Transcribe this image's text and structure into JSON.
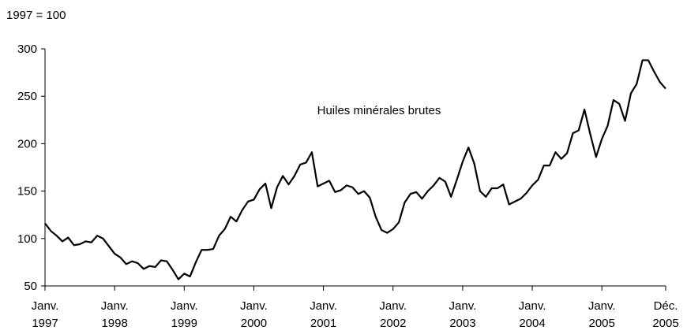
{
  "chart_data": {
    "type": "line",
    "y_label": "1997 = 100",
    "categories": [
      "Janv. 1997",
      null,
      null,
      null,
      null,
      null,
      null,
      null,
      null,
      null,
      null,
      null,
      "Janv. 1998",
      null,
      null,
      null,
      null,
      null,
      null,
      null,
      null,
      null,
      null,
      null,
      "Janv. 1999",
      null,
      null,
      null,
      null,
      null,
      null,
      null,
      null,
      null,
      null,
      null,
      "Janv. 2000",
      null,
      null,
      null,
      null,
      null,
      null,
      null,
      null,
      null,
      null,
      null,
      "Janv. 2001",
      null,
      null,
      null,
      null,
      null,
      null,
      null,
      null,
      null,
      null,
      null,
      "Janv. 2002",
      null,
      null,
      null,
      null,
      null,
      null,
      null,
      null,
      null,
      null,
      null,
      "Janv. 2003",
      null,
      null,
      null,
      null,
      null,
      null,
      null,
      null,
      null,
      null,
      null,
      "Janv. 2004",
      null,
      null,
      null,
      null,
      null,
      null,
      null,
      null,
      null,
      null,
      null,
      "Janv. 2005",
      null,
      null,
      null,
      null,
      null,
      null,
      null,
      null,
      null,
      null,
      "Déc. 2005"
    ],
    "series": [
      {
        "name": "Huiles minérales brutes",
        "color": "#000000",
        "values": [
          116,
          108,
          103,
          97,
          101,
          93,
          94,
          97,
          96,
          103,
          100,
          92,
          84,
          80,
          73,
          76,
          74,
          68,
          71,
          70,
          77,
          76,
          67,
          57,
          63,
          60,
          75,
          88,
          88,
          89,
          103,
          110,
          123,
          118,
          130,
          139,
          141,
          152,
          158,
          132,
          154,
          166,
          157,
          166,
          178,
          180,
          191,
          155,
          158,
          161,
          149,
          151,
          156,
          154,
          147,
          150,
          143,
          123,
          109,
          106,
          110,
          117,
          138,
          147,
          149,
          142,
          150,
          156,
          164,
          160,
          144,
          162,
          181,
          196,
          179,
          150,
          144,
          153,
          153,
          157,
          136,
          139,
          142,
          148,
          156,
          162,
          177,
          177,
          191,
          184,
          190,
          211,
          214,
          236,
          210,
          186,
          205,
          219,
          246,
          242,
          224,
          253,
          263,
          288,
          288,
          276,
          265,
          258
        ]
      }
    ],
    "ylim": [
      50,
      300
    ],
    "yticks": [
      50,
      100,
      150,
      200,
      250,
      300
    ],
    "grid": false
  }
}
